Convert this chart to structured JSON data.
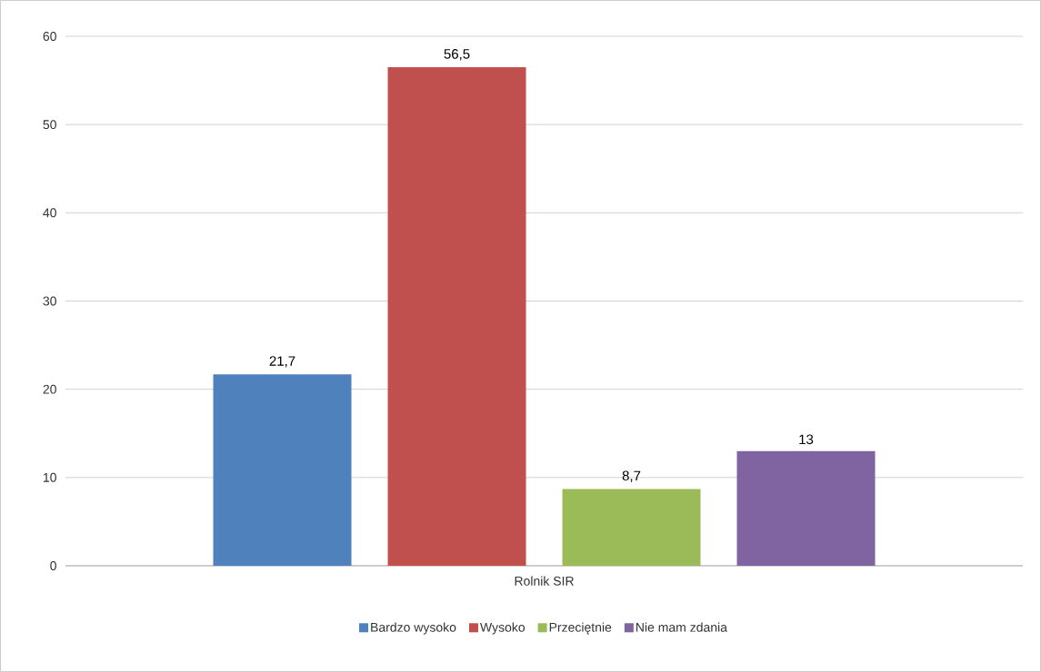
{
  "chart_data": {
    "type": "bar",
    "categories": [
      "Rolnik SIR"
    ],
    "series": [
      {
        "name": "Bardzo wysoko",
        "color": "#4f81bd",
        "values": [
          21.7
        ],
        "value_labels": [
          "21,7"
        ]
      },
      {
        "name": "Wysoko",
        "color": "#c0504d",
        "values": [
          56.5
        ],
        "value_labels": [
          "56,5"
        ]
      },
      {
        "name": "Przeciętnie",
        "color": "#9bbb59",
        "values": [
          8.7
        ],
        "value_labels": [
          "8,7"
        ]
      },
      {
        "name": "Nie mam zdania",
        "color": "#8064a2",
        "values": [
          13
        ],
        "value_labels": [
          "13"
        ]
      }
    ],
    "ylim": [
      0,
      60
    ],
    "yticks": [
      0,
      10,
      20,
      30,
      40,
      50,
      60
    ],
    "grid": "y",
    "legend": "bottom"
  }
}
